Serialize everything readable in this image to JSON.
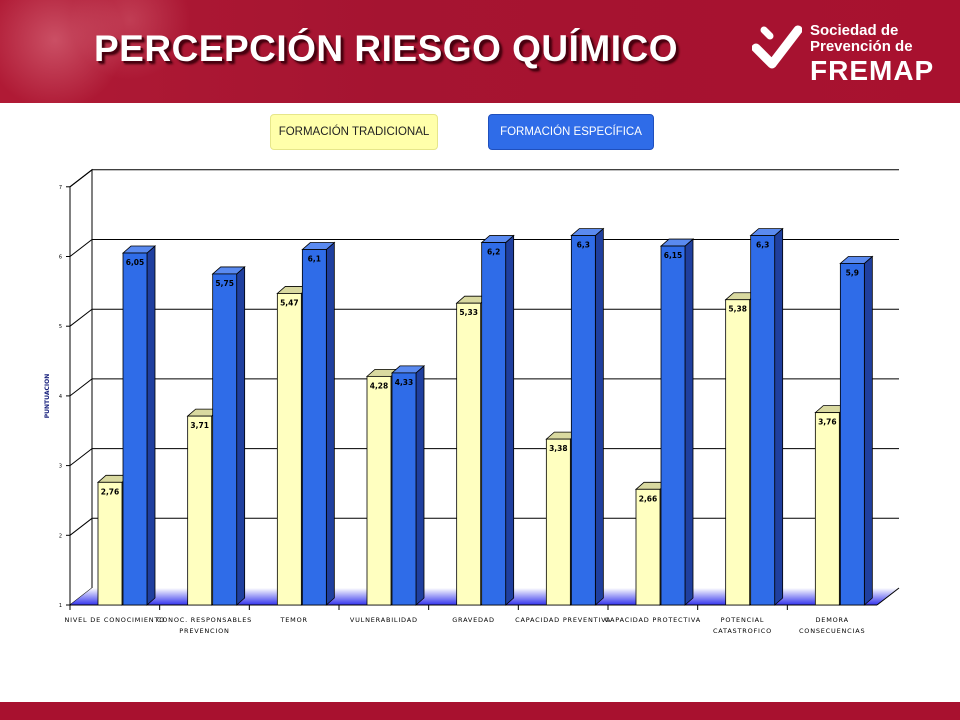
{
  "header": {
    "title": "PERCEPCIÓN RIESGO QUÍMICO",
    "logo_line1": "Sociedad de",
    "logo_line2": "Prevención de",
    "logo_line3": "FREMAP"
  },
  "colors": {
    "header_bg": "#a8112f",
    "traditional": "#ffffc0",
    "specific": "#2f6ce8",
    "floor": "#3333ee"
  },
  "chart_data": {
    "type": "bar",
    "ylabel": "PUNTUACION",
    "ylim": [
      1,
      7
    ],
    "yticks": [
      "1",
      "2",
      "3",
      "4",
      "5",
      "6",
      "7"
    ],
    "grid": true,
    "legend_position": "top",
    "categories": [
      [
        "NIVEL DE CONOCIMIENTO"
      ],
      [
        "CONOC. RESPONSABLES",
        "PREVENCION"
      ],
      [
        "TEMOR"
      ],
      [
        "VULNERABILIDAD"
      ],
      [
        "GRAVEDAD"
      ],
      [
        "CAPACIDAD PREVENTIVA"
      ],
      [
        "CAPACIDAD PROTECTIVA"
      ],
      [
        "POTENCIAL",
        "CATASTROFICO"
      ],
      [
        "DEMORA",
        "CONSECUENCIAS"
      ]
    ],
    "series": [
      {
        "name": "FORMACIÓN TRADICIONAL",
        "color": "#ffffc0",
        "values": [
          2.76,
          3.71,
          5.47,
          4.28,
          5.33,
          3.38,
          2.66,
          5.38,
          3.76
        ],
        "labels": [
          "2,76",
          "3,71",
          "5,47",
          "4,28",
          "5,33",
          "3,38",
          "2,66",
          "5,38",
          "3,76"
        ]
      },
      {
        "name": "FORMACIÓN ESPECÍFICA",
        "color": "#2f6ce8",
        "values": [
          6.05,
          5.75,
          6.1,
          4.33,
          6.2,
          6.3,
          6.15,
          6.3,
          5.9
        ],
        "labels": [
          "6,05",
          "5,75",
          "6,1",
          "4,33",
          "6,2",
          "6,3",
          "6,15",
          "6,3",
          "5,9"
        ]
      }
    ]
  }
}
